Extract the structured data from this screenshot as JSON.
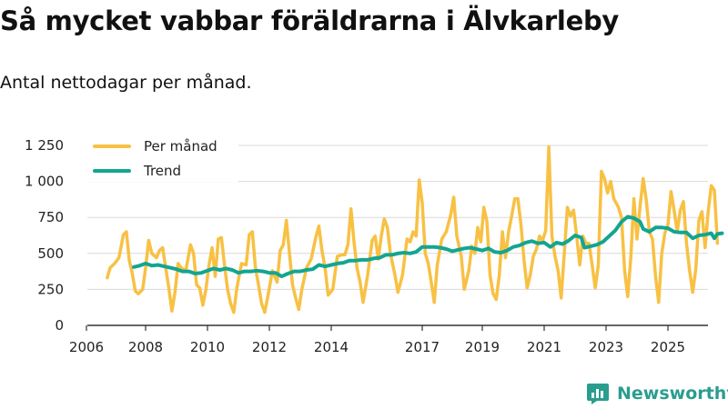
{
  "title": "Så mycket vabbar föräldrarna i Älvkarleby",
  "subtitle": "Antal nettodagar per månad.",
  "brand": "Newsworthy",
  "colors": {
    "per_month": "#f8c144",
    "trend": "#13a591",
    "grid": "#d9d9d9",
    "brand": "#2a9d8f"
  },
  "chart_data": {
    "type": "line",
    "title": "Så mycket vabbar föräldrarna i Älvkarleby",
    "subtitle": "Antal nettodagar per månad.",
    "xlabel": "",
    "ylabel": "",
    "xlim": [
      2006,
      2026
    ],
    "ylim": [
      0,
      1250
    ],
    "xticks": [
      2006,
      2008,
      2010,
      2012,
      2014,
      2017,
      2019,
      2021,
      2023,
      2025
    ],
    "xtick_labels": [
      "2006",
      "2008",
      "2010",
      "2012",
      "2014",
      "2017",
      "2019",
      "2021",
      "2023",
      "2025"
    ],
    "yticks": [
      0,
      250,
      500,
      750,
      1000,
      1250
    ],
    "ytick_labels": [
      "0",
      "250",
      "500",
      "750",
      "1 000",
      "1 250"
    ],
    "grid": true,
    "legend": "top-left",
    "series": [
      {
        "name": "Per månad",
        "points": [
          [
            2006.7,
            330
          ],
          [
            2006.8,
            400
          ],
          [
            2006.95,
            430
          ],
          [
            2007.1,
            470
          ],
          [
            2007.25,
            630
          ],
          [
            2007.35,
            650
          ],
          [
            2007.45,
            450
          ],
          [
            2007.55,
            360
          ],
          [
            2007.65,
            240
          ],
          [
            2007.75,
            220
          ],
          [
            2007.9,
            250
          ],
          [
            2008.0,
            400
          ],
          [
            2008.1,
            590
          ],
          [
            2008.2,
            500
          ],
          [
            2008.35,
            470
          ],
          [
            2008.45,
            520
          ],
          [
            2008.55,
            540
          ],
          [
            2008.65,
            400
          ],
          [
            2008.75,
            260
          ],
          [
            2008.85,
            100
          ],
          [
            2008.95,
            230
          ],
          [
            2009.05,
            430
          ],
          [
            2009.15,
            400
          ],
          [
            2009.3,
            380
          ],
          [
            2009.45,
            560
          ],
          [
            2009.55,
            500
          ],
          [
            2009.65,
            280
          ],
          [
            2009.75,
            260
          ],
          [
            2009.85,
            140
          ],
          [
            2009.95,
            250
          ],
          [
            2010.05,
            420
          ],
          [
            2010.15,
            540
          ],
          [
            2010.25,
            340
          ],
          [
            2010.35,
            600
          ],
          [
            2010.45,
            610
          ],
          [
            2010.55,
            420
          ],
          [
            2010.65,
            250
          ],
          [
            2010.75,
            150
          ],
          [
            2010.85,
            90
          ],
          [
            2010.95,
            260
          ],
          [
            2011.1,
            430
          ],
          [
            2011.25,
            420
          ],
          [
            2011.35,
            630
          ],
          [
            2011.45,
            650
          ],
          [
            2011.55,
            400
          ],
          [
            2011.65,
            280
          ],
          [
            2011.75,
            150
          ],
          [
            2011.85,
            90
          ],
          [
            2011.95,
            200
          ],
          [
            2012.1,
            380
          ],
          [
            2012.25,
            300
          ],
          [
            2012.35,
            520
          ],
          [
            2012.45,
            560
          ],
          [
            2012.55,
            730
          ],
          [
            2012.65,
            500
          ],
          [
            2012.75,
            280
          ],
          [
            2012.85,
            190
          ],
          [
            2012.95,
            110
          ],
          [
            2013.05,
            250
          ],
          [
            2013.2,
            400
          ],
          [
            2013.35,
            460
          ],
          [
            2013.5,
            610
          ],
          [
            2013.6,
            690
          ],
          [
            2013.7,
            520
          ],
          [
            2013.8,
            400
          ],
          [
            2013.9,
            210
          ],
          [
            2014.05,
            250
          ],
          [
            2014.2,
            480
          ],
          [
            2014.35,
            490
          ],
          [
            2014.45,
            490
          ],
          [
            2014.55,
            560
          ],
          [
            2014.65,
            810
          ],
          [
            2014.75,
            580
          ],
          [
            2014.85,
            400
          ],
          [
            2014.95,
            300
          ],
          [
            2015.05,
            160
          ],
          [
            2015.2,
            350
          ],
          [
            2015.35,
            590
          ],
          [
            2015.45,
            620
          ],
          [
            2015.55,
            460
          ],
          [
            2015.65,
            620
          ],
          [
            2015.75,
            740
          ],
          [
            2015.85,
            680
          ],
          [
            2015.95,
            500
          ],
          [
            2016.1,
            350
          ],
          [
            2016.2,
            230
          ],
          [
            2016.35,
            350
          ],
          [
            2016.5,
            600
          ],
          [
            2016.6,
            580
          ],
          [
            2016.7,
            650
          ],
          [
            2016.8,
            620
          ],
          [
            2016.9,
            1010
          ],
          [
            2017.0,
            850
          ],
          [
            2017.1,
            500
          ],
          [
            2017.2,
            430
          ],
          [
            2017.3,
            300
          ],
          [
            2017.4,
            160
          ],
          [
            2017.5,
            420
          ],
          [
            2017.65,
            600
          ],
          [
            2017.8,
            650
          ],
          [
            2017.95,
            770
          ],
          [
            2018.05,
            890
          ],
          [
            2018.15,
            620
          ],
          [
            2018.3,
            480
          ],
          [
            2018.4,
            250
          ],
          [
            2018.55,
            380
          ],
          [
            2018.65,
            550
          ],
          [
            2018.75,
            500
          ],
          [
            2018.85,
            680
          ],
          [
            2018.95,
            580
          ],
          [
            2019.05,
            820
          ],
          [
            2019.15,
            720
          ],
          [
            2019.25,
            350
          ],
          [
            2019.35,
            220
          ],
          [
            2019.45,
            180
          ],
          [
            2019.55,
            350
          ],
          [
            2019.65,
            650
          ],
          [
            2019.75,
            470
          ],
          [
            2019.85,
            650
          ],
          [
            2019.95,
            760
          ],
          [
            2020.05,
            880
          ],
          [
            2020.15,
            880
          ],
          [
            2020.25,
            700
          ],
          [
            2020.35,
            450
          ],
          [
            2020.45,
            260
          ],
          [
            2020.55,
            350
          ],
          [
            2020.65,
            480
          ],
          [
            2020.75,
            530
          ],
          [
            2020.85,
            620
          ],
          [
            2020.95,
            590
          ],
          [
            2021.05,
            660
          ],
          [
            2021.15,
            1240
          ],
          [
            2021.25,
            620
          ],
          [
            2021.35,
            480
          ],
          [
            2021.45,
            380
          ],
          [
            2021.55,
            190
          ],
          [
            2021.65,
            500
          ],
          [
            2021.75,
            820
          ],
          [
            2021.85,
            760
          ],
          [
            2021.95,
            800
          ],
          [
            2022.05,
            620
          ],
          [
            2022.15,
            420
          ],
          [
            2022.25,
            620
          ],
          [
            2022.35,
            570
          ],
          [
            2022.45,
            570
          ],
          [
            2022.55,
            420
          ],
          [
            2022.65,
            260
          ],
          [
            2022.75,
            420
          ],
          [
            2022.85,
            1070
          ],
          [
            2022.95,
            1020
          ],
          [
            2023.05,
            920
          ],
          [
            2023.15,
            1000
          ],
          [
            2023.25,
            880
          ],
          [
            2023.4,
            820
          ],
          [
            2023.5,
            750
          ],
          [
            2023.6,
            380
          ],
          [
            2023.7,
            200
          ],
          [
            2023.8,
            470
          ],
          [
            2023.9,
            880
          ],
          [
            2024.0,
            600
          ],
          [
            2024.1,
            830
          ],
          [
            2024.2,
            1020
          ],
          [
            2024.3,
            870
          ],
          [
            2024.4,
            650
          ],
          [
            2024.5,
            600
          ],
          [
            2024.6,
            340
          ],
          [
            2024.7,
            160
          ],
          [
            2024.8,
            500
          ],
          [
            2024.9,
            640
          ],
          [
            2025.0,
            700
          ],
          [
            2025.1,
            930
          ],
          [
            2025.2,
            800
          ],
          [
            2025.3,
            650
          ],
          [
            2025.4,
            800
          ],
          [
            2025.5,
            860
          ],
          [
            2025.6,
            570
          ],
          [
            2025.7,
            380
          ],
          [
            2025.8,
            230
          ],
          [
            2025.9,
            390
          ],
          [
            2026.0,
            730
          ],
          [
            2026.1,
            790
          ],
          [
            2026.2,
            540
          ],
          [
            2026.3,
            790
          ],
          [
            2026.4,
            970
          ],
          [
            2026.5,
            940
          ],
          [
            2026.6,
            570
          ]
        ]
      },
      {
        "name": "Trend",
        "points": [
          [
            2007.6,
            405
          ],
          [
            2007.8,
            415
          ],
          [
            2008.0,
            430
          ],
          [
            2008.2,
            415
          ],
          [
            2008.4,
            420
          ],
          [
            2008.6,
            410
          ],
          [
            2008.8,
            400
          ],
          [
            2009.0,
            390
          ],
          [
            2009.2,
            375
          ],
          [
            2009.4,
            375
          ],
          [
            2009.6,
            360
          ],
          [
            2009.8,
            365
          ],
          [
            2010.0,
            380
          ],
          [
            2010.2,
            395
          ],
          [
            2010.4,
            385
          ],
          [
            2010.6,
            395
          ],
          [
            2010.8,
            385
          ],
          [
            2011.0,
            365
          ],
          [
            2011.2,
            375
          ],
          [
            2011.4,
            375
          ],
          [
            2011.6,
            380
          ],
          [
            2011.8,
            375
          ],
          [
            2012.0,
            365
          ],
          [
            2012.2,
            365
          ],
          [
            2012.4,
            340
          ],
          [
            2012.6,
            360
          ],
          [
            2012.8,
            375
          ],
          [
            2013.0,
            375
          ],
          [
            2013.2,
            385
          ],
          [
            2013.4,
            390
          ],
          [
            2013.6,
            420
          ],
          [
            2013.8,
            410
          ],
          [
            2014.0,
            420
          ],
          [
            2014.2,
            430
          ],
          [
            2014.4,
            435
          ],
          [
            2014.6,
            450
          ],
          [
            2014.8,
            450
          ],
          [
            2015.0,
            455
          ],
          [
            2015.2,
            455
          ],
          [
            2015.4,
            465
          ],
          [
            2015.6,
            470
          ],
          [
            2015.8,
            490
          ],
          [
            2016.0,
            490
          ],
          [
            2016.2,
            500
          ],
          [
            2016.4,
            505
          ],
          [
            2016.6,
            500
          ],
          [
            2016.8,
            510
          ],
          [
            2017.0,
            545
          ],
          [
            2017.2,
            545
          ],
          [
            2017.4,
            545
          ],
          [
            2017.6,
            540
          ],
          [
            2017.8,
            530
          ],
          [
            2018.0,
            515
          ],
          [
            2018.2,
            525
          ],
          [
            2018.4,
            535
          ],
          [
            2018.6,
            540
          ],
          [
            2018.8,
            530
          ],
          [
            2019.0,
            520
          ],
          [
            2019.2,
            535
          ],
          [
            2019.4,
            510
          ],
          [
            2019.6,
            505
          ],
          [
            2019.8,
            520
          ],
          [
            2020.0,
            545
          ],
          [
            2020.2,
            555
          ],
          [
            2020.4,
            575
          ],
          [
            2020.6,
            585
          ],
          [
            2020.8,
            570
          ],
          [
            2021.0,
            575
          ],
          [
            2021.2,
            545
          ],
          [
            2021.4,
            575
          ],
          [
            2021.6,
            565
          ],
          [
            2021.8,
            590
          ],
          [
            2022.0,
            625
          ],
          [
            2022.2,
            610
          ],
          [
            2022.3,
            540
          ],
          [
            2022.5,
            550
          ],
          [
            2022.7,
            560
          ],
          [
            2022.9,
            580
          ],
          [
            2023.1,
            620
          ],
          [
            2023.3,
            660
          ],
          [
            2023.5,
            720
          ],
          [
            2023.7,
            755
          ],
          [
            2023.9,
            745
          ],
          [
            2024.1,
            720
          ],
          [
            2024.2,
            670
          ],
          [
            2024.4,
            650
          ],
          [
            2024.6,
            680
          ],
          [
            2024.8,
            680
          ],
          [
            2025.0,
            675
          ],
          [
            2025.2,
            650
          ],
          [
            2025.4,
            645
          ],
          [
            2025.6,
            645
          ],
          [
            2025.8,
            605
          ],
          [
            2026.0,
            625
          ],
          [
            2026.2,
            630
          ],
          [
            2026.4,
            640
          ],
          [
            2026.5,
            605
          ],
          [
            2026.6,
            635
          ],
          [
            2026.75,
            640
          ]
        ]
      }
    ]
  }
}
